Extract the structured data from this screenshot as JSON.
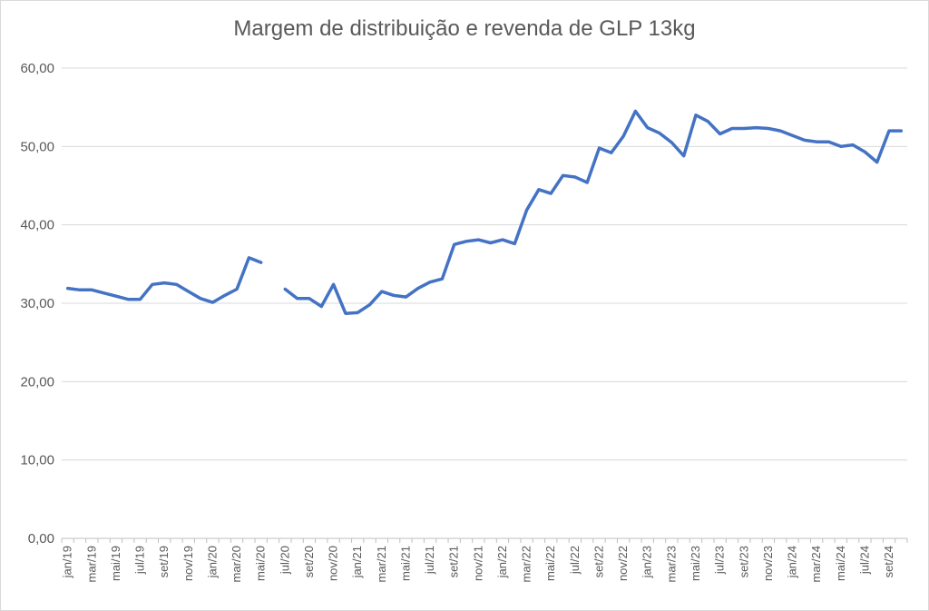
{
  "chart_data": {
    "type": "line",
    "title": "Margem de distribuição e revenda de GLP 13kg",
    "xlabel": "",
    "ylabel": "",
    "ylim": [
      0,
      60
    ],
    "yticks": [
      "0,00",
      "10,00",
      "20,00",
      "30,00",
      "40,00",
      "50,00",
      "60,00"
    ],
    "grid": true,
    "line_color": "#4472c4",
    "categories": [
      "jan/19",
      "fev/19",
      "mar/19",
      "abr/19",
      "mai/19",
      "jun/19",
      "jul/19",
      "ago/19",
      "set/19",
      "out/19",
      "nov/19",
      "dez/19",
      "jan/20",
      "fev/20",
      "mar/20",
      "abr/20",
      "mai/20",
      "jun/20",
      "jul/20",
      "ago/20",
      "set/20",
      "out/20",
      "nov/20",
      "dez/20",
      "jan/21",
      "fev/21",
      "mar/21",
      "abr/21",
      "mai/21",
      "jun/21",
      "jul/21",
      "ago/21",
      "set/21",
      "out/21",
      "nov/21",
      "dez/21",
      "jan/22",
      "fev/22",
      "mar/22",
      "abr/22",
      "mai/22",
      "jun/22",
      "jul/22",
      "ago/22",
      "set/22",
      "out/22",
      "nov/22",
      "dez/22",
      "jan/23",
      "fev/23",
      "mar/23",
      "abr/23",
      "mai/23",
      "jun/23",
      "jul/23",
      "ago/23",
      "set/23",
      "out/23",
      "nov/23",
      "dez/23",
      "jan/24",
      "fev/24",
      "mar/24",
      "abr/24",
      "mai/24",
      "jun/24",
      "jul/24",
      "ago/24",
      "set/24",
      "out/24"
    ],
    "tick_labels": [
      "jan/19",
      "mar/19",
      "mai/19",
      "jul/19",
      "set/19",
      "nov/19",
      "jan/20",
      "mar/20",
      "mai/20",
      "jul/20",
      "set/20",
      "nov/20",
      "jan/21",
      "mar/21",
      "mai/21",
      "jul/21",
      "set/21",
      "nov/21",
      "jan/22",
      "mar/22",
      "mai/22",
      "jul/22",
      "set/22",
      "nov/22",
      "jan/23",
      "mar/23",
      "mai/23",
      "jul/23",
      "set/23",
      "nov/23",
      "jan/24",
      "mar/24",
      "mai/24",
      "jul/24",
      "set/24"
    ],
    "series": [
      {
        "values": [
          31.9,
          31.7,
          31.7,
          31.3,
          30.9,
          30.5,
          30.5,
          32.4,
          32.6,
          32.4,
          31.5,
          30.6,
          30.1,
          31.0,
          31.8,
          35.8,
          35.2,
          null,
          31.8,
          30.6,
          30.6,
          29.6,
          32.4,
          28.7,
          28.8,
          29.8,
          31.5,
          31.0,
          30.8,
          31.9,
          32.7,
          33.1,
          37.5,
          37.9,
          38.1,
          37.7,
          38.1,
          37.6,
          41.9,
          44.5,
          44.0,
          46.3,
          46.1,
          45.4,
          49.8,
          49.2,
          51.3,
          54.5,
          52.4,
          51.7,
          50.5,
          48.8,
          54.0,
          53.2,
          51.6,
          52.3,
          52.3,
          52.4,
          52.3,
          52.0,
          51.4,
          50.8,
          50.6,
          50.6,
          50.0,
          50.2,
          49.3,
          48.0,
          52.0,
          52.0
        ]
      }
    ]
  }
}
